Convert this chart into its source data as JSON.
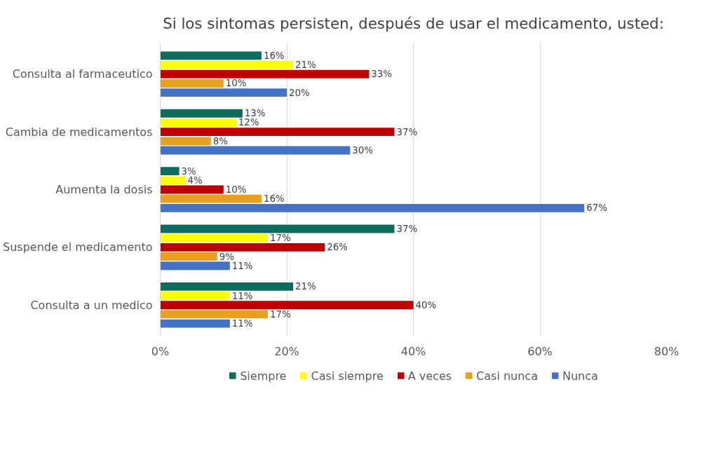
{
  "chart_data": {
    "type": "bar",
    "orientation": "horizontal",
    "title": "Si los sintomas persisten, después de usar el medicamento, usted:",
    "categories": [
      "Consulta al farmaceutico",
      "Cambia de medicamentos",
      "Aumenta la dosis",
      "Suspende el medicamento",
      "Consulta a un medico"
    ],
    "series": [
      {
        "name": "Siempre",
        "color": "#0e6b5e",
        "values": [
          16,
          13,
          3,
          37,
          21
        ],
        "value_labels": [
          "16%",
          "13%",
          "3%",
          "37%",
          "21%"
        ]
      },
      {
        "name": "Casi siempre",
        "color": "#ffff00",
        "values": [
          21,
          12,
          4,
          17,
          11
        ],
        "value_labels": [
          "21%",
          "12%",
          "4%",
          "17%",
          "11%"
        ]
      },
      {
        "name": "A veces",
        "color": "#c00000",
        "values": [
          33,
          37,
          10,
          26,
          40
        ],
        "value_labels": [
          "33%",
          "37%",
          "10%",
          "26%",
          "40%"
        ]
      },
      {
        "name": "Casi nunca",
        "color": "#e8a020",
        "values": [
          10,
          8,
          16,
          9,
          17
        ],
        "value_labels": [
          "10%",
          "8%",
          "16%",
          "9%",
          "17%"
        ]
      },
      {
        "name": "Nunca",
        "color": "#4472c4",
        "values": [
          20,
          30,
          67,
          11,
          11
        ],
        "value_labels": [
          "20%",
          "30%",
          "67%",
          "11%",
          "11%"
        ]
      }
    ],
    "xlim": [
      0,
      80
    ],
    "xticks": [
      {
        "value": 0,
        "label": "0%"
      },
      {
        "value": 20,
        "label": "20%"
      },
      {
        "value": 40,
        "label": "40%"
      },
      {
        "value": 60,
        "label": "60%"
      },
      {
        "value": 80,
        "label": "80%"
      }
    ],
    "grid": "x",
    "legend": "bottom"
  }
}
